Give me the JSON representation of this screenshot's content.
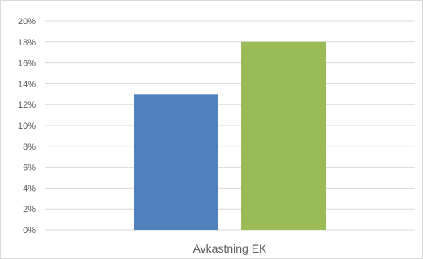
{
  "chart_data": {
    "type": "bar",
    "categories": [
      "Avkastning EK"
    ],
    "series": [
      {
        "values": [
          13
        ]
      },
      {
        "values": [
          18
        ]
      }
    ],
    "series_colors": [
      "#4f81bd",
      "#9bbb59"
    ],
    "ylim": [
      0,
      20
    ],
    "ytick_step": 2,
    "ytick_labels": [
      "0%",
      "2%",
      "4%",
      "6%",
      "8%",
      "10%",
      "12%",
      "14%",
      "16%",
      "18%",
      "20%"
    ],
    "grid": true,
    "legend": "none",
    "title": "",
    "xlabel": "",
    "ylabel": ""
  }
}
